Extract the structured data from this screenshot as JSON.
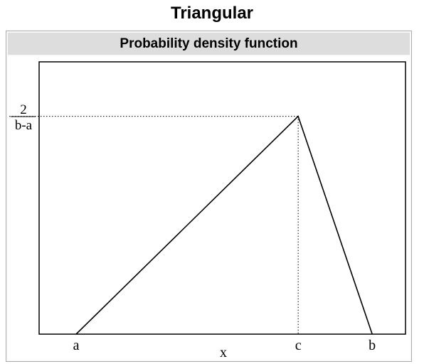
{
  "page": {
    "title": "Triangular",
    "subheader": "Probability density function"
  },
  "chart_data": {
    "type": "line",
    "title": "",
    "xlabel": "x",
    "ylabel": "",
    "xlim": [
      0.5,
      5.45
    ],
    "ylim": [
      0,
      1.25
    ],
    "grid": false,
    "x_tick_labels": [
      {
        "x": 1,
        "label": "a"
      },
      {
        "x": 4,
        "label": "c"
      },
      {
        "x": 5,
        "label": "b"
      }
    ],
    "y_tick_label": {
      "y": 1,
      "numerator": "2",
      "denominator": "b-a"
    },
    "series": [
      {
        "x": [
          1,
          4,
          5
        ],
        "y": [
          0,
          1,
          0
        ]
      }
    ],
    "guides": {
      "peak_x": 4,
      "peak_y": 1
    },
    "colors": {
      "line": "#000000",
      "guide": "#000000"
    }
  }
}
